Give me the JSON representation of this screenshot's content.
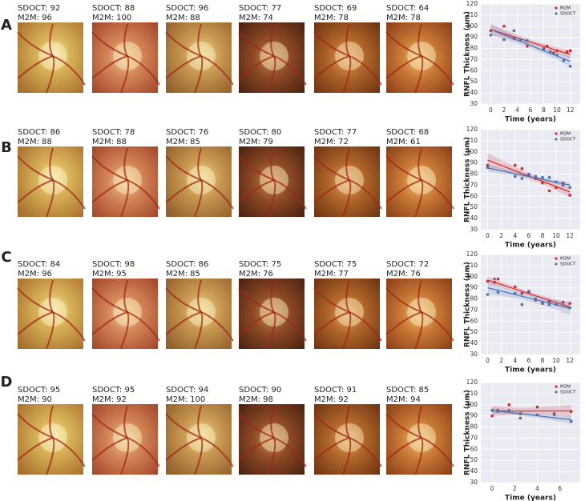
{
  "rows": [
    {
      "label": "A",
      "images": [
        {
          "sdoct": "SDOCT: 92",
          "m2m": "M2M: 96"
        },
        {
          "sdoct": "SDOCT: 88",
          "m2m": "M2M: 100"
        },
        {
          "sdoct": "SDOCT: 96",
          "m2m": "M2M: 88"
        },
        {
          "sdoct": "SDOCT: 77",
          "m2m": "M2M: 74"
        },
        {
          "sdoct": "SDOCT: 69",
          "m2m": "M2M: 78"
        },
        {
          "sdoct": "SDOCT: 64",
          "m2m": "M2M: 78"
        }
      ]
    },
    {
      "label": "B",
      "images": [
        {
          "sdoct": "SDOCT: 86",
          "m2m": "M2M: 88"
        },
        {
          "sdoct": "SDOCT: 78",
          "m2m": "M2M: 88"
        },
        {
          "sdoct": "SDOCT: 76",
          "m2m": "M2M: 85"
        },
        {
          "sdoct": "SDOCT: 80",
          "m2m": "M2M: 79"
        },
        {
          "sdoct": "SDOCT: 77",
          "m2m": "M2M: 72"
        },
        {
          "sdoct": "SDOCT: 68",
          "m2m": "M2M: 61"
        }
      ]
    },
    {
      "label": "C",
      "images": [
        {
          "sdoct": "SDOCT: 84",
          "m2m": "M2M: 96"
        },
        {
          "sdoct": "SDOCT: 98",
          "m2m": "M2M: 95"
        },
        {
          "sdoct": "SDOCT: 86",
          "m2m": "M2M: 85"
        },
        {
          "sdoct": "SDOCT: 75",
          "m2m": "M2M: 76"
        },
        {
          "sdoct": "SDOCT: 75",
          "m2m": "M2M: 77"
        },
        {
          "sdoct": "SDOCT: 72",
          "m2m": "M2M: 76"
        }
      ]
    },
    {
      "label": "D",
      "images": [
        {
          "sdoct": "SDOCT: 95",
          "m2m": "M2M: 90"
        },
        {
          "sdoct": "SDOCT: 95",
          "m2m": "M2M: 92"
        },
        {
          "sdoct": "SDOCT: 94",
          "m2m": "M2M: 100"
        },
        {
          "sdoct": "SDOCT: 90",
          "m2m": "M2M: 98"
        },
        {
          "sdoct": "SDOCT: 91",
          "m2m": "M2M: 92"
        },
        {
          "sdoct": "SDOCT: 85",
          "m2m": "M2M: 94"
        }
      ]
    }
  ],
  "chart_data": [
    {
      "type": "scatter",
      "xlabel": "Time (years)",
      "ylabel": "RNFL Thickness (μm)",
      "xlim": [
        -1.5,
        13.5
      ],
      "ylim": [
        30,
        120
      ],
      "xticks": [
        0,
        2,
        4,
        6,
        8,
        10,
        12
      ],
      "yticks": [
        30,
        40,
        50,
        60,
        70,
        80,
        90,
        100,
        110,
        120
      ],
      "grid": true,
      "legend": "upper right",
      "series": [
        {
          "name": "M2M",
          "color": "#d62728",
          "x": [
            0,
            2,
            3.5,
            5.5,
            8,
            8.5,
            9.5,
            10,
            11.5,
            12
          ],
          "values": [
            96,
            100,
            89,
            82,
            80,
            82,
            76,
            78,
            77,
            78
          ]
        },
        {
          "name": "SDOCT",
          "color": "#4c72b0",
          "x": [
            0,
            2,
            3.5,
            4.5,
            5.5,
            8,
            9,
            10,
            11,
            12
          ],
          "values": [
            92,
            88,
            96,
            88,
            87,
            79,
            77,
            74,
            69,
            64
          ]
        }
      ]
    },
    {
      "type": "scatter",
      "xlabel": "Time (years)",
      "ylabel": "RNFL Thickness (μm)",
      "xlim": [
        -1,
        13.5
      ],
      "ylim": [
        30,
        120
      ],
      "xticks": [
        0,
        2,
        4,
        6,
        8,
        10,
        12
      ],
      "yticks": [
        30,
        40,
        50,
        60,
        70,
        80,
        90,
        100,
        110,
        120
      ],
      "grid": true,
      "legend": "upper right",
      "series": [
        {
          "name": "M2M",
          "color": "#d62728",
          "x": [
            0,
            4,
            5,
            6,
            7,
            8,
            9,
            10,
            11,
            12
          ],
          "values": [
            88,
            88,
            85,
            79,
            76,
            72,
            65,
            68,
            72,
            61
          ]
        },
        {
          "name": "SDOCT",
          "color": "#4c72b0",
          "x": [
            0,
            4,
            5,
            6,
            7,
            8,
            9,
            10,
            11,
            12
          ],
          "values": [
            86,
            78,
            76,
            80,
            78,
            77,
            77,
            73,
            70,
            68
          ]
        }
      ]
    },
    {
      "type": "scatter",
      "xlabel": "Time (years)",
      "ylabel": "RNFL Thickness (μm)",
      "xlim": [
        -1,
        13.5
      ],
      "ylim": [
        30,
        120
      ],
      "xticks": [
        0,
        2,
        4,
        6,
        8,
        10,
        12
      ],
      "yticks": [
        30,
        40,
        50,
        60,
        70,
        80,
        90,
        100,
        110,
        120
      ],
      "grid": true,
      "legend": "upper right",
      "series": [
        {
          "name": "M2M",
          "color": "#d62728",
          "x": [
            0,
            1,
            1.5,
            4,
            5,
            6,
            7,
            8,
            9,
            11,
            12
          ],
          "values": [
            96,
            95,
            98,
            91,
            85,
            86,
            79,
            76,
            78,
            77,
            76
          ]
        },
        {
          "name": "SDOCT",
          "color": "#4c72b0",
          "x": [
            0,
            1,
            1.5,
            4,
            5,
            6,
            7,
            8,
            9,
            10,
            12
          ],
          "values": [
            84,
            98,
            86,
            85,
            75,
            87,
            80,
            77,
            75,
            75,
            72
          ]
        }
      ]
    },
    {
      "type": "scatter",
      "xlabel": "Time (years)",
      "ylabel": "RNFL Thickness (μm)",
      "xlim": [
        -1,
        7.8
      ],
      "ylim": [
        30,
        120
      ],
      "xticks": [
        0,
        2,
        4,
        6
      ],
      "yticks": [
        30,
        40,
        50,
        60,
        70,
        80,
        90,
        100,
        110,
        120
      ],
      "grid": true,
      "legend": "upper right",
      "series": [
        {
          "name": "M2M",
          "color": "#d62728",
          "x": [
            0,
            0.5,
            1.5,
            2.5,
            4,
            5.5,
            7
          ],
          "values": [
            90,
            95,
            100,
            92,
            98,
            92,
            94
          ]
        },
        {
          "name": "SDOCT",
          "color": "#4c72b0",
          "x": [
            0,
            0.5,
            1.5,
            2.5,
            4,
            5.5,
            7
          ],
          "values": [
            95,
            94,
            95,
            88,
            91,
            91,
            85
          ]
        }
      ]
    }
  ]
}
